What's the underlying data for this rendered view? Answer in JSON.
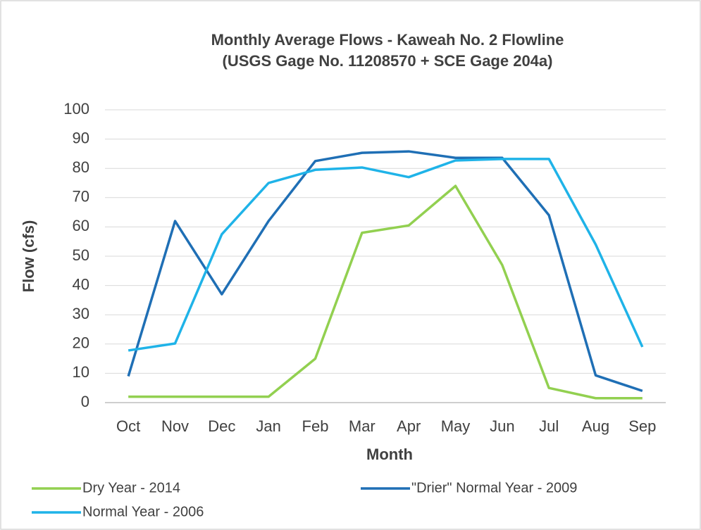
{
  "chart_data": {
    "type": "line",
    "title": [
      "Monthly Average Flows - Kaweah No. 2 Flowline",
      "(USGS Gage No. 11208570 + SCE Gage 204a)"
    ],
    "xlabel": "Month",
    "ylabel": "Flow (cfs)",
    "categories": [
      "Oct",
      "Nov",
      "Dec",
      "Jan",
      "Feb",
      "Mar",
      "Apr",
      "May",
      "Jun",
      "Jul",
      "Aug",
      "Sep"
    ],
    "series": [
      {
        "name": "Dry Year - 2014",
        "color": "#92d050",
        "values": [
          2,
          2,
          2,
          2,
          15,
          58,
          60.5,
          74,
          47,
          5,
          1.5,
          1.5
        ]
      },
      {
        "name": "\"Drier\" Normal Year - 2009",
        "color": "#1f6fb5",
        "values": [
          9,
          62,
          37,
          62,
          82.5,
          85.3,
          85.8,
          83.6,
          83.6,
          64,
          9.3,
          4
        ]
      },
      {
        "name": "Normal Year - 2006",
        "color": "#1fb3e8",
        "values": [
          17.8,
          20.2,
          57.5,
          75,
          79.5,
          80.3,
          77,
          82.7,
          83.2,
          83.2,
          54,
          19
        ]
      }
    ],
    "ylim": [
      0,
      100
    ],
    "yticks": [
      0,
      10,
      20,
      30,
      40,
      50,
      60,
      70,
      80,
      90,
      100
    ],
    "grid": true,
    "legend": "bottom"
  }
}
